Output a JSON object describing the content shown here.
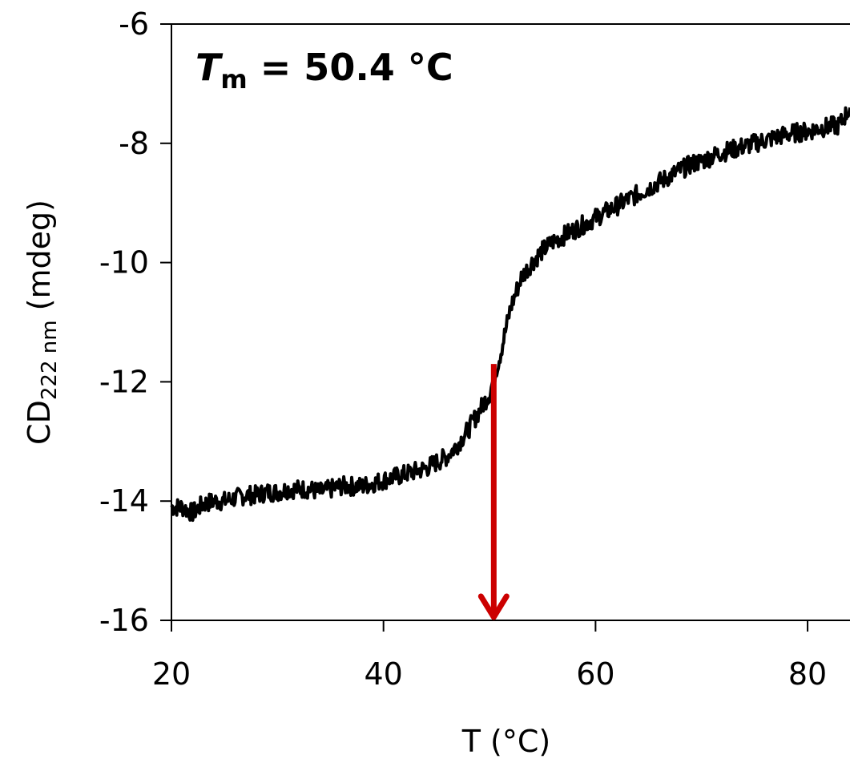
{
  "chart_data": {
    "type": "line",
    "xlabel": "T (°C)",
    "ylabel": {
      "main": "CD",
      "subscript": "222 nm",
      "unit": " (mdeg)"
    },
    "xlim": [
      20,
      84
    ],
    "ylim": [
      -16,
      -6
    ],
    "xticks": [
      20,
      40,
      60,
      80
    ],
    "yticks": [
      -16,
      -14,
      -12,
      -10,
      -8,
      -6
    ],
    "xtick_labels": [
      "20",
      "40",
      "60",
      "80"
    ],
    "ytick_labels": [
      "-16",
      "-14",
      "-12",
      "-10",
      "-8",
      "-6"
    ],
    "grid": false,
    "annotation": {
      "symbol": "T",
      "subscript": "m",
      "rest": " = 50.4 °C",
      "value": 50.4
    },
    "marker": {
      "x": 50.4,
      "y_top": -11.7,
      "y_bottom": -16,
      "color": "#cc0000"
    },
    "series": [
      {
        "color": "#000000",
        "x": [
          20,
          21,
          22,
          23,
          24,
          25,
          26,
          27,
          28,
          29,
          30,
          31,
          32,
          33,
          34,
          35,
          36,
          37,
          38,
          39,
          40,
          41,
          42,
          43,
          44,
          45,
          46,
          47,
          48,
          49,
          50,
          51,
          52,
          53,
          54,
          55,
          56,
          57,
          58,
          59,
          60,
          61,
          62,
          63,
          64,
          65,
          66,
          67,
          68,
          69,
          70,
          71,
          72,
          73,
          74,
          75,
          76,
          77,
          78,
          79,
          80,
          81,
          82,
          83,
          84
        ],
        "y": [
          -14.1,
          -14.1,
          -14.2,
          -14.05,
          -14.0,
          -14.0,
          -13.95,
          -13.9,
          -13.9,
          -13.85,
          -13.85,
          -13.8,
          -13.8,
          -13.8,
          -13.85,
          -13.8,
          -13.75,
          -13.75,
          -13.75,
          -13.7,
          -13.65,
          -13.6,
          -13.55,
          -13.5,
          -13.45,
          -13.35,
          -13.25,
          -13.05,
          -12.8,
          -12.5,
          -12.2,
          -11.55,
          -10.75,
          -10.25,
          -10.0,
          -9.8,
          -9.65,
          -9.55,
          -9.45,
          -9.35,
          -9.25,
          -9.15,
          -9.05,
          -8.95,
          -8.85,
          -8.75,
          -8.65,
          -8.55,
          -8.45,
          -8.35,
          -8.3,
          -8.22,
          -8.15,
          -8.1,
          -8.05,
          -8.0,
          -7.95,
          -7.9,
          -7.85,
          -7.82,
          -7.8,
          -7.75,
          -7.72,
          -7.7,
          -7.4
        ]
      }
    ]
  }
}
